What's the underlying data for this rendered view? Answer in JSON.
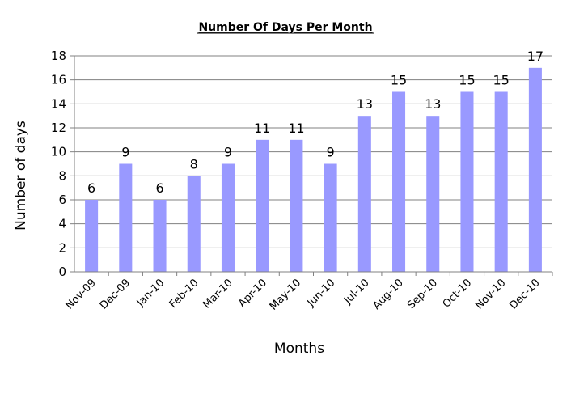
{
  "chart_data": {
    "type": "bar",
    "title": "Number Of Days Per Month",
    "xlabel": "Months",
    "ylabel": "Number of days",
    "categories": [
      "Nov-09",
      "Dec-09",
      "Jan-10",
      "Feb-10",
      "Mar-10",
      "Apr-10",
      "May-10",
      "Jun-10",
      "Jul-10",
      "Aug-10",
      "Sep-10",
      "Oct-10",
      "Nov-10",
      "Dec-10"
    ],
    "values": [
      6,
      9,
      6,
      8,
      9,
      11,
      11,
      9,
      13,
      15,
      13,
      15,
      15,
      17
    ],
    "ylim": [
      0,
      18
    ],
    "yticks": [
      0,
      2,
      4,
      6,
      8,
      10,
      12,
      14,
      16,
      18
    ],
    "grid": true,
    "legend": "none",
    "bar_color": "#9999ff",
    "grid_color": "#808080",
    "data_labels": true
  }
}
